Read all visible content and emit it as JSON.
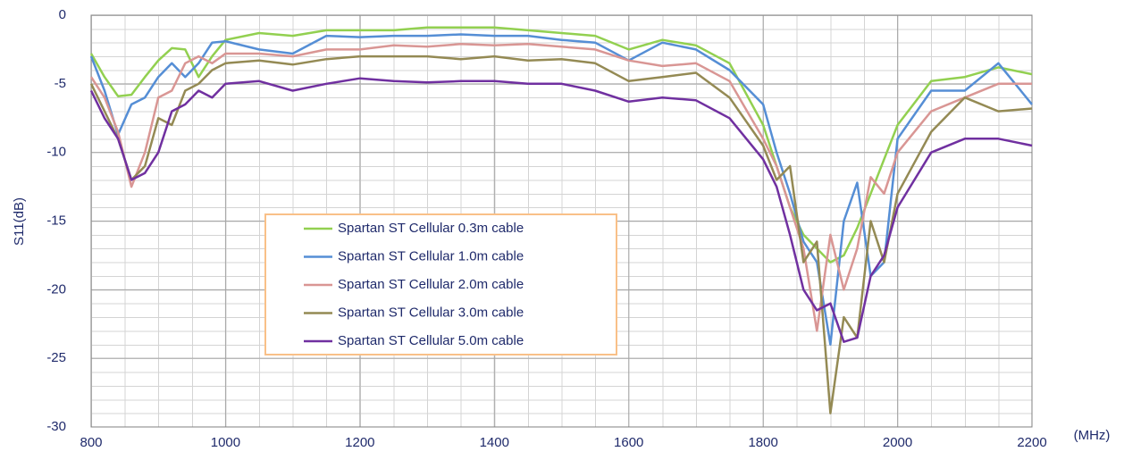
{
  "chart_data": {
    "type": "line",
    "y_label": "S11(dB)",
    "x_label": "(MHz)",
    "xlim": [
      800,
      2200
    ],
    "xticks": [
      800,
      1000,
      1200,
      1400,
      1600,
      1800,
      2000,
      2200
    ],
    "ylim": [
      -30,
      0
    ],
    "yticks": [
      0,
      -5,
      -10,
      -15,
      -20,
      -25,
      -30
    ],
    "grid": true,
    "legend": "center",
    "x": [
      800,
      820,
      840,
      860,
      880,
      900,
      920,
      940,
      960,
      980,
      1000,
      1050,
      1100,
      1150,
      1200,
      1250,
      1300,
      1350,
      1400,
      1450,
      1500,
      1550,
      1600,
      1650,
      1700,
      1750,
      1800,
      1820,
      1840,
      1860,
      1880,
      1900,
      1920,
      1940,
      1960,
      1980,
      2000,
      2050,
      2100,
      2150,
      2200
    ],
    "series": [
      {
        "name": "Spartan ST Cellular 0.3m cable",
        "color": "#92d050",
        "values": [
          -2.8,
          -4.5,
          -5.9,
          -5.8,
          -4.5,
          -3.3,
          -2.4,
          -2.5,
          -4.5,
          -3,
          -1.8,
          -1.3,
          -1.5,
          -1.1,
          -1.1,
          -1.1,
          -0.9,
          -0.9,
          -0.9,
          -1.1,
          -1.3,
          -1.5,
          -2.5,
          -1.8,
          -2.2,
          -3.5,
          -8,
          -11,
          -14,
          -16,
          -17,
          -18,
          -17.5,
          -15.5,
          -13,
          -10.5,
          -8,
          -4.8,
          -4.5,
          -3.8,
          -4.3
        ]
      },
      {
        "name": "Spartan ST Cellular 1.0m cable",
        "color": "#558ed5",
        "values": [
          -3,
          -5.5,
          -8.7,
          -6.5,
          -6,
          -4.5,
          -3.5,
          -4.5,
          -3.5,
          -2,
          -1.9,
          -2.5,
          -2.8,
          -1.5,
          -1.6,
          -1.5,
          -1.5,
          -1.4,
          -1.5,
          -1.5,
          -1.8,
          -2,
          -3.3,
          -2,
          -2.5,
          -4,
          -6.5,
          -10,
          -13,
          -16.5,
          -18,
          -24,
          -15,
          -12.2,
          -19,
          -18,
          -9,
          -5.5,
          -5.5,
          -3.5,
          -6.5
        ]
      },
      {
        "name": "Spartan ST Cellular 2.0m cable",
        "color": "#d99694",
        "values": [
          -4.5,
          -6,
          -8.5,
          -12.5,
          -10,
          -6,
          -5.5,
          -3.5,
          -3,
          -3.5,
          -2.8,
          -2.8,
          -3,
          -2.5,
          -2.5,
          -2.2,
          -2.3,
          -2.1,
          -2.2,
          -2.1,
          -2.3,
          -2.5,
          -3.3,
          -3.7,
          -3.5,
          -4.8,
          -9,
          -11,
          -14,
          -17,
          -23,
          -16,
          -20,
          -17,
          -11.8,
          -13,
          -10,
          -7,
          -6,
          -5,
          -5
        ]
      },
      {
        "name": "Spartan ST Cellular 3.0m cable",
        "color": "#948a54",
        "values": [
          -5,
          -7,
          -9,
          -12,
          -11,
          -7.5,
          -8,
          -5.5,
          -5,
          -4,
          -3.5,
          -3.3,
          -3.6,
          -3.2,
          -3,
          -3,
          -3,
          -3.2,
          -3,
          -3.3,
          -3.2,
          -3.5,
          -4.8,
          -4.5,
          -4.2,
          -6,
          -9.5,
          -12,
          -11,
          -18,
          -16.5,
          -29,
          -22,
          -23.5,
          -15,
          -18,
          -13,
          -8.5,
          -6,
          -7,
          -6.8
        ]
      },
      {
        "name": "Spartan ST Cellular 5.0m cable",
        "color": "#7030a0",
        "values": [
          -5.5,
          -7.5,
          -9,
          -12,
          -11.5,
          -10,
          -7,
          -6.5,
          -5.5,
          -6,
          -5,
          -4.8,
          -5.5,
          -5,
          -4.6,
          -4.8,
          -4.9,
          -4.8,
          -4.8,
          -5,
          -5,
          -5.5,
          -6.3,
          -6,
          -6.2,
          -7.5,
          -10.5,
          -12.5,
          -16,
          -20,
          -21.5,
          -21,
          -23.8,
          -23.5,
          -19,
          -17.5,
          -14,
          -10,
          -9,
          -9,
          -9.5
        ]
      }
    ]
  }
}
